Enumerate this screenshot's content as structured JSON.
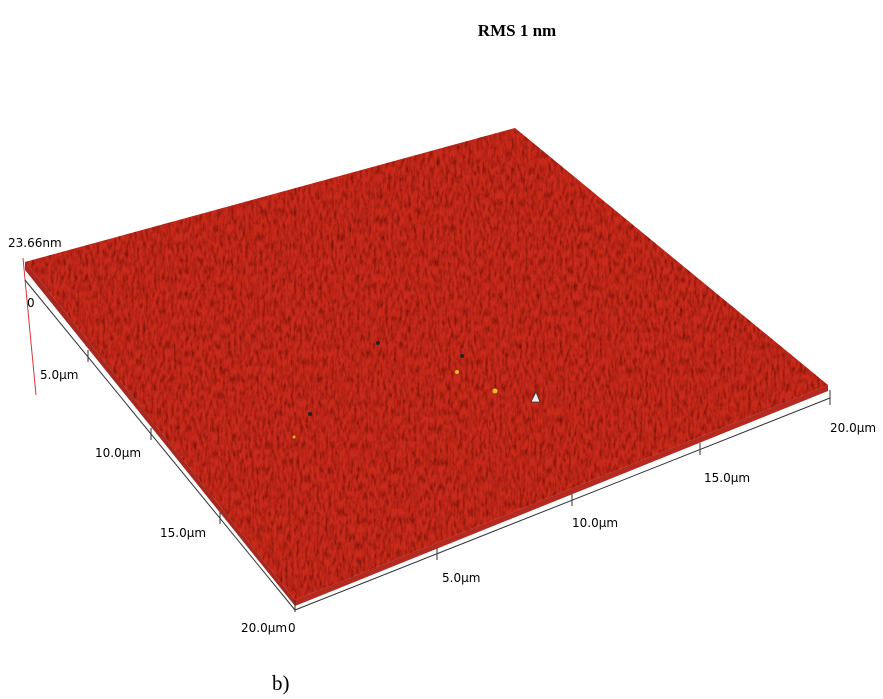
{
  "title": "RMS 1 nm",
  "z_axis": {
    "max_label": "23.66nm",
    "min_label": "0"
  },
  "left_axis": {
    "labels": [
      "5.0µm",
      "10.0µm",
      "15.0µm",
      "20.0µm"
    ]
  },
  "right_axis": {
    "origin_label": "0",
    "labels": [
      "5.0µm",
      "10.0µm",
      "15.0µm",
      "20.0µm"
    ]
  },
  "caption": "b)"
}
